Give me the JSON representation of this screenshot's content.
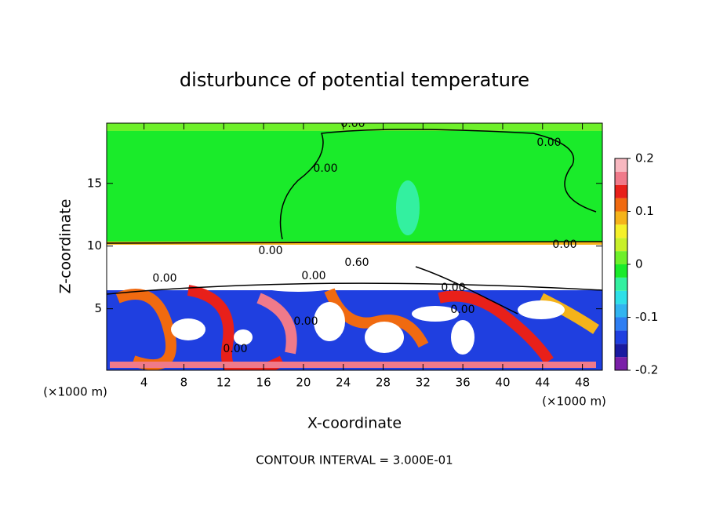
{
  "chart_data": {
    "type": "contour",
    "title": "disturbunce of potential temperature",
    "x_label": "X-coordinate",
    "y_label": "Z-coordinate",
    "x_unit": "(×1000 m)",
    "y_unit": "(×1000 m)",
    "footnote": "CONTOUR INTERVAL = 3.000E-01",
    "xlim": [
      0.25,
      50
    ],
    "xticks": [
      4,
      8,
      12,
      16,
      20,
      24,
      28,
      32,
      36,
      40,
      44,
      48
    ],
    "ylim": [
      0.1,
      19.8
    ],
    "yticks": [
      5,
      10,
      15
    ],
    "colorbar": {
      "lim": [
        -0.2,
        0.2
      ],
      "ticks": [
        0.2,
        0.1,
        0,
        -0.1,
        -0.2
      ],
      "colors": [
        "#7a1fa8",
        "#1a1aa0",
        "#1f3fe0",
        "#2e7ef2",
        "#31b4f0",
        "#2ee0e8",
        "#33f0a0",
        "#1aeb2a",
        "#6ef02a",
        "#c8f02a",
        "#f5f02a",
        "#f5b31a",
        "#f06a10",
        "#e8201a",
        "#f07a8a",
        "#f8b8c0"
      ]
    },
    "contour_labels": [
      "0.00",
      "0.00",
      "0.00",
      "0.00",
      "0.00",
      "0.00",
      "0.60",
      "0.00",
      "0.00",
      "0.00",
      "0.00",
      "0.00"
    ]
  }
}
